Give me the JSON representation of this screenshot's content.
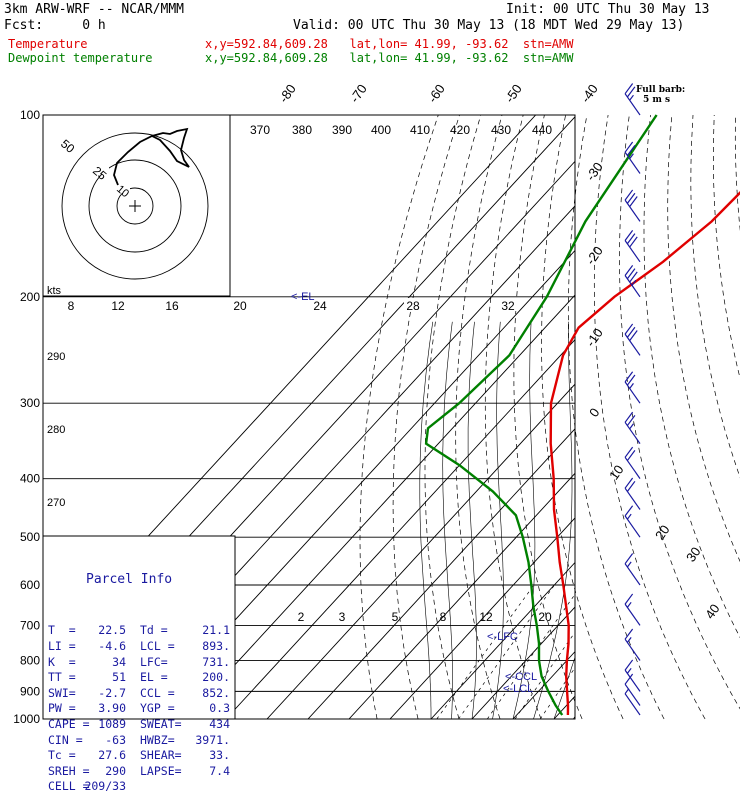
{
  "header": {
    "title": "3km ARW-WRF -- NCAR/MMM",
    "init": "Init: 00 UTC Thu 30 May 13",
    "fcst": "Fcst:     0 h",
    "valid": "Valid: 00 UTC Thu 30 May 13 (18 MDT Wed 29 May 13)"
  },
  "legend": [
    {
      "name": "Temperature",
      "color": "#e00000",
      "loc": "x,y=592.84,609.28   lat,lon= 41.99, -93.62  stn=AMW"
    },
    {
      "name": "Dewpoint temperature",
      "color": "#008000",
      "loc": "x,y=592.84,609.28   lat,lon= 41.99, -93.62  stn=AMW"
    }
  ],
  "barb_key": {
    "line1": "Full barb:",
    "line2": "5 m s"
  },
  "parcel_info": {
    "title": "Parcel Info",
    "rows": [
      [
        "T  =",
        "22.5",
        "Td =",
        "21.1"
      ],
      [
        "LI =",
        "-4.6",
        "LCL =",
        "893."
      ],
      [
        "K  =",
        "34",
        "LFC=",
        "731."
      ],
      [
        "TT =",
        "51",
        "EL =",
        "200."
      ],
      [
        "SWI=",
        "-2.7",
        "CCL =",
        "852."
      ],
      [
        "PW =",
        "3.90",
        "YGP =",
        "0.3"
      ],
      [
        "CAPE =",
        "1089",
        "SWEAT=",
        "434"
      ],
      [
        "CIN =",
        "-63",
        "HWBZ=",
        "3971."
      ],
      [
        "Tc =",
        "27.6",
        "SHEAR=",
        "33."
      ],
      [
        "SREH =",
        "290",
        "LAPSE=",
        "7.4"
      ],
      [
        "CELL =",
        "209/33",
        "",
        ""
      ]
    ]
  },
  "hodograph": {
    "ring_labels": [
      "50",
      "25",
      "10"
    ],
    "units_label": "kts"
  },
  "mixing_ratio_labels": [
    "2",
    "3",
    "5",
    "8",
    "12",
    "20"
  ],
  "markers": {
    "el": "<-EL",
    "lfc": "<-LFC",
    "ccl": "<-CCL",
    "lcl": "<-LCL"
  },
  "theta_e_labels": [
    "290",
    "280",
    "270"
  ],
  "chart_data": {
    "type": "line",
    "xlabel": "",
    "ylabel": "",
    "pressure_levels": [
      100,
      200,
      300,
      400,
      500,
      600,
      700,
      800,
      900,
      1000
    ],
    "temperature_ticks": [
      -80,
      -70,
      -60,
      -50,
      -40,
      -30,
      -20,
      -10,
      0,
      10,
      20,
      30,
      40
    ],
    "theta_top_labels": [
      370,
      380,
      390,
      400,
      410,
      420,
      430,
      440
    ],
    "theta_mid_labels": [
      8,
      12,
      16,
      20,
      24,
      28,
      32
    ],
    "series": [
      {
        "name": "Temperature",
        "color": "#e00000",
        "pressure": [
          985,
          950,
          900,
          850,
          800,
          750,
          700,
          650,
          600,
          550,
          500,
          450,
          400,
          350,
          300,
          250,
          225,
          200,
          175,
          150,
          125,
          100
        ],
        "temp": [
          22.5,
          20.4,
          17.0,
          13.4,
          10.0,
          6.6,
          2.6,
          -2.4,
          -7.8,
          -13.8,
          -20.0,
          -27.0,
          -34.0,
          -42.6,
          -51.6,
          -59.4,
          -61.8,
          -60.0,
          -56.0,
          -53.2,
          -52.4,
          -51.5
        ]
      },
      {
        "name": "Dewpoint temperature",
        "color": "#008000",
        "pressure": [
          985,
          950,
          900,
          850,
          800,
          750,
          700,
          650,
          600,
          550,
          500,
          460,
          420,
          380,
          350,
          330,
          300,
          250,
          200,
          150,
          100
        ],
        "temp": [
          21.1,
          17.4,
          12.4,
          7.4,
          3.2,
          -0.6,
          -5.2,
          -10.4,
          -15.6,
          -21.4,
          -28.4,
          -35.0,
          -46.0,
          -60.0,
          -73.0,
          -76.0,
          -74.0,
          -72.5,
          -76.5,
          -84.0,
          -90.5
        ]
      }
    ],
    "wind_barbs": [
      {
        "p": 100,
        "speed_ms": 25
      },
      {
        "p": 125,
        "speed_ms": 25
      },
      {
        "p": 150,
        "speed_ms": 30
      },
      {
        "p": 175,
        "speed_ms": 30
      },
      {
        "p": 200,
        "speed_ms": 35
      },
      {
        "p": 250,
        "speed_ms": 30
      },
      {
        "p": 300,
        "speed_ms": 25
      },
      {
        "p": 350,
        "speed_ms": 25
      },
      {
        "p": 400,
        "speed_ms": 20
      },
      {
        "p": 450,
        "speed_ms": 20
      },
      {
        "p": 500,
        "speed_ms": 15
      },
      {
        "p": 600,
        "speed_ms": 15
      },
      {
        "p": 700,
        "speed_ms": 15
      },
      {
        "p": 800,
        "speed_ms": 15
      },
      {
        "p": 900,
        "speed_ms": 15
      },
      {
        "p": 950,
        "speed_ms": 10
      },
      {
        "p": 985,
        "speed_ms": 5
      }
    ]
  }
}
